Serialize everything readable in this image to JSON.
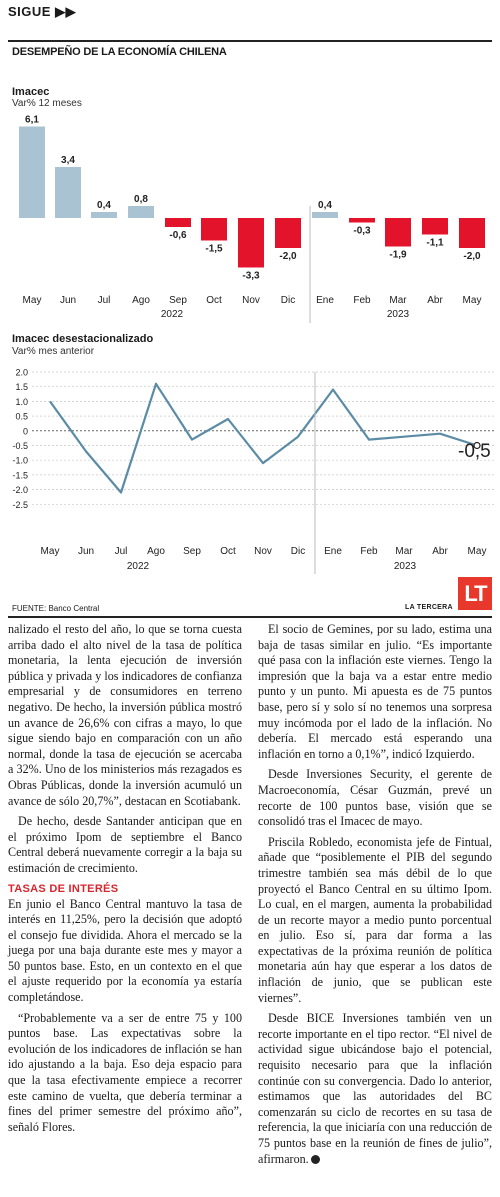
{
  "header": {
    "sigue": "SIGUE ▶▶",
    "section_title": "DESEMPEÑO DE LA ECONOMÍA CHILENA"
  },
  "chart_data": [
    {
      "type": "bar",
      "title": "Imacec",
      "subtitle": "Var% 12 meses",
      "categories": [
        "May",
        "Jun",
        "Jul",
        "Ago",
        "Sep",
        "Oct",
        "Nov",
        "Dic",
        "Ene",
        "Feb",
        "Mar",
        "Abr",
        "May"
      ],
      "values": [
        6.1,
        3.4,
        0.4,
        0.8,
        -0.6,
        -1.5,
        -3.3,
        -2.0,
        0.4,
        -0.3,
        -1.9,
        -1.1,
        -2.0
      ],
      "value_labels": [
        "6,1",
        "3,4",
        "0,4",
        "0,8",
        "-0,6",
        "-1,5",
        "-3,3",
        "-2,0",
        "0,4",
        "-0,3",
        "-1,9",
        "-1,1",
        "-2,0"
      ],
      "year_labels": [
        "2022",
        "2023"
      ],
      "colors": {
        "positive": "#a9c3d2",
        "negative": "#e3132c"
      }
    },
    {
      "type": "line",
      "title": "Imacec desestacionalizado",
      "subtitle": "Var% mes anterior",
      "categories": [
        "May",
        "Jun",
        "Jul",
        "Ago",
        "Sep",
        "Oct",
        "Nov",
        "Dic",
        "Ene",
        "Feb",
        "Mar",
        "Abr",
        "May"
      ],
      "values": [
        1.0,
        -0.7,
        -2.1,
        1.6,
        -0.3,
        0.4,
        -1.1,
        -0.2,
        1.4,
        -0.3,
        -0.2,
        -0.1,
        -0.5
      ],
      "ylim": [
        -2.5,
        2.0
      ],
      "yticks": [
        "2.0",
        "1.5",
        "1.0",
        "0.5",
        "0",
        "-0.5",
        "-1.0",
        "-1.5",
        "-2.0",
        "-2.5"
      ],
      "year_labels": [
        "2022",
        "2023"
      ],
      "last_value_label": "-0,5",
      "colors": {
        "line": "#5b8ba5"
      }
    }
  ],
  "footer": {
    "fuente": "FUENTE: Banco Central",
    "brand": "LA TERCERA",
    "logo": "LT"
  },
  "article": {
    "left": {
      "p1": "nalizado el resto del año, lo que se torna cuesta arriba dado el alto nivel de la tasa de política monetaria, la lenta ejecución de inversión pública y privada y los indicadores de confianza empresarial y de consumidores en terreno negativo. De hecho, la inversión pública mostró un avance de 26,6% con cifras a mayo, lo que sigue siendo bajo en comparación con un año normal, donde la tasa de ejecución se acercaba a 32%. Uno de los ministerios más rezagados es Obras Públicas, donde la inversión acumuló un avance de sólo 20,7%”, destacan en Scotiabank.",
      "p2": "De hecho, desde Santander anticipan que en el próximo Ipom de septiembre el Banco Central deberá nuevamente corregir a la baja su estimación de crecimiento.",
      "subhead": "TASAS DE INTERÉS",
      "p3": "En junio el Banco Central mantuvo la tasa de interés en 11,25%, pero la decisión que adoptó el consejo fue dividida. Ahora el mercado se la juega por una baja durante este mes y mayor a 50 puntos base. Esto, en un contexto en el que el ajuste requerido por la economía ya estaría completándose.",
      "p4": "“Probablemente va a ser de entre 75 y 100 puntos base. Las expectativas sobre la evolución de los indicadores de inflación se han ido ajustando a la baja. Eso deja espacio para que la tasa efectivamente empiece a recorrer este camino de vuelta, que debería terminar a fines del primer semestre del próximo año”, señaló Flores."
    },
    "right": {
      "p1": "El socio de Gemines, por su lado, estima una baja de tasas similar en julio. “Es importante qué pasa con la inflación este viernes. Tengo la impresión que la baja va a estar entre medio punto y un punto. Mi apuesta es de 75 puntos base, pero sí y solo sí no tenemos una sorpresa muy incómoda por el lado de la inflación. No debería. El mercado está esperando una inflación en torno a 0,1%”, indicó Izquierdo.",
      "p2": "Desde Inversiones Security, el gerente de Macroeconomía, César Guzmán, prevé un recorte de 100 puntos base, visión que se consolidó tras el Imacec de mayo.",
      "p3": "Priscila Robledo, economista jefe de Fintual, añade que “posiblemente el PIB del segundo trimestre también sea más débil de lo que proyectó el Banco Central en su último Ipom. Lo cual, en el margen, aumenta la probabilidad de un recorte mayor a medio punto porcentual en julio. Eso sí, para dar forma a las expectativas de la próxima reunión de política monetaria aún hay que esperar a los datos de inflación de junio, que se publican este viernes”.",
      "p4": "Desde BICE Inversiones también ven un recorte importante en el tipo rector. “El nivel de actividad sigue ubicándose bajo el potencial, requisito necesario para que la inflación continúe con su convergencia. Dado lo anterior, estimamos que las autoridades del BC comenzarán su ciclo de recortes en su tasa de referencia, la que iniciaría con una reducción de 75 puntos base en la reunión de fines de julio”, afirmaron."
    }
  }
}
